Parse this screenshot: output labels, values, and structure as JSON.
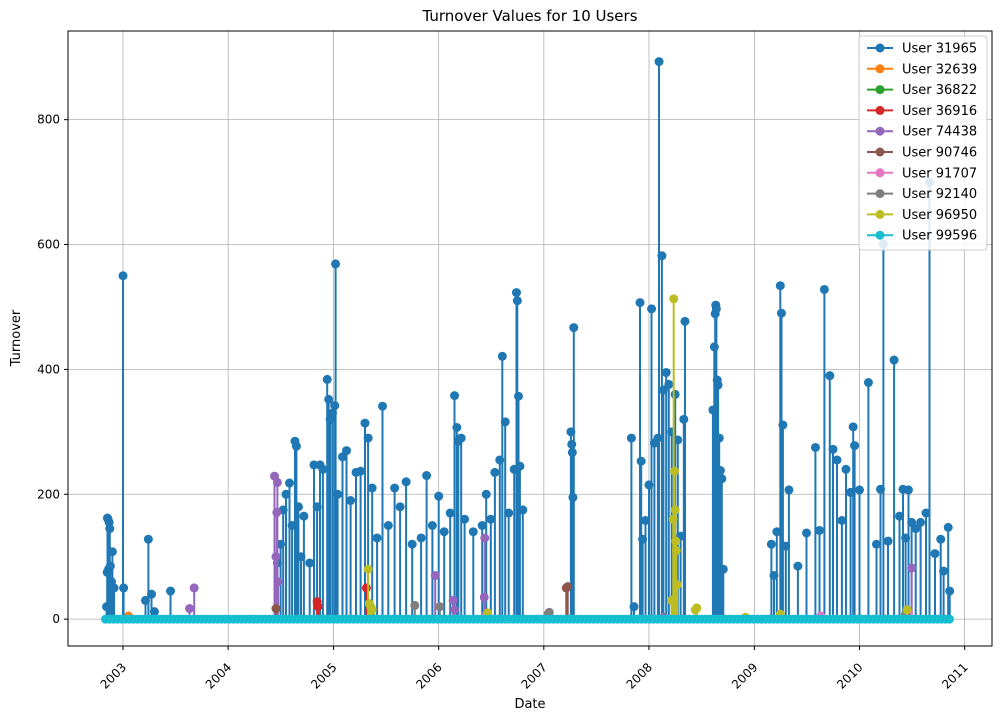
{
  "chart_data": {
    "type": "line",
    "title": "Turnover Values for 10 Users",
    "xlabel": "Date",
    "ylabel": "Turnover",
    "xlim": [
      "2002-06-24",
      "2011-04-06"
    ],
    "ylim": [
      -43,
      942
    ],
    "x_ticks": [
      "2003",
      "2004",
      "2005",
      "2006",
      "2007",
      "2008",
      "2009",
      "2010",
      "2011"
    ],
    "y_ticks": [
      0,
      200,
      400,
      600,
      800
    ],
    "grid": true,
    "legend_position": "top-right",
    "series": [
      {
        "name": "User 31965",
        "color": "#1f77b4",
        "points": [
          [
            "2002-11-05",
            20
          ],
          [
            "2002-11-07",
            75
          ],
          [
            "2002-11-08",
            162
          ],
          [
            "2002-11-10",
            160
          ],
          [
            "2002-11-12",
            80
          ],
          [
            "2002-11-14",
            155
          ],
          [
            "2002-11-16",
            145
          ],
          [
            "2002-11-18",
            85
          ],
          [
            "2002-11-22",
            60
          ],
          [
            "2002-11-25",
            108
          ],
          [
            "2002-12-01",
            50
          ],
          [
            "2003-01-01",
            550
          ],
          [
            "2003-01-03",
            50
          ],
          [
            "2003-03-20",
            30
          ],
          [
            "2003-03-30",
            128
          ],
          [
            "2003-04-10",
            40
          ],
          [
            "2003-04-20",
            12
          ],
          [
            "2003-06-15",
            45
          ],
          [
            "2004-06-20",
            90
          ],
          [
            "2004-07-01",
            120
          ],
          [
            "2004-07-10",
            175
          ],
          [
            "2004-07-20",
            200
          ],
          [
            "2004-08-01",
            218
          ],
          [
            "2004-08-10",
            150
          ],
          [
            "2004-08-20",
            285
          ],
          [
            "2004-08-25",
            277
          ],
          [
            "2004-09-01",
            180
          ],
          [
            "2004-09-10",
            100
          ],
          [
            "2004-09-20",
            165
          ],
          [
            "2004-10-10",
            90
          ],
          [
            "2004-10-25",
            247
          ],
          [
            "2004-11-05",
            180
          ],
          [
            "2004-11-15",
            247
          ],
          [
            "2004-11-25",
            240
          ],
          [
            "2004-12-10",
            384
          ],
          [
            "2004-12-15",
            352
          ],
          [
            "2004-12-20",
            320
          ],
          [
            "2004-12-28",
            330
          ],
          [
            "2005-01-05",
            342
          ],
          [
            "2005-01-08",
            569
          ],
          [
            "2005-01-15",
            200
          ],
          [
            "2005-02-01",
            260
          ],
          [
            "2005-02-15",
            270
          ],
          [
            "2005-03-01",
            190
          ],
          [
            "2005-03-20",
            235
          ],
          [
            "2005-04-05",
            237
          ],
          [
            "2005-04-20",
            314
          ],
          [
            "2005-05-01",
            290
          ],
          [
            "2005-05-15",
            210
          ],
          [
            "2005-06-01",
            130
          ],
          [
            "2005-06-20",
            341
          ],
          [
            "2005-07-10",
            150
          ],
          [
            "2005-08-01",
            210
          ],
          [
            "2005-08-20",
            180
          ],
          [
            "2005-09-10",
            220
          ],
          [
            "2005-10-01",
            120
          ],
          [
            "2005-11-01",
            130
          ],
          [
            "2005-11-20",
            230
          ],
          [
            "2005-12-10",
            150
          ],
          [
            "2006-01-01",
            197
          ],
          [
            "2006-01-20",
            140
          ],
          [
            "2006-02-10",
            170
          ],
          [
            "2006-02-25",
            358
          ],
          [
            "2006-03-05",
            307
          ],
          [
            "2006-03-10",
            285
          ],
          [
            "2006-03-20",
            290
          ],
          [
            "2006-04-01",
            160
          ],
          [
            "2006-05-01",
            140
          ],
          [
            "2006-06-01",
            150
          ],
          [
            "2006-06-15",
            200
          ],
          [
            "2006-07-01",
            160
          ],
          [
            "2006-07-15",
            235
          ],
          [
            "2006-08-01",
            255
          ],
          [
            "2006-08-10",
            421
          ],
          [
            "2006-08-20",
            316
          ],
          [
            "2006-09-01",
            170
          ],
          [
            "2006-09-20",
            240
          ],
          [
            "2006-09-28",
            523
          ],
          [
            "2006-10-01",
            510
          ],
          [
            "2006-10-05",
            357
          ],
          [
            "2006-10-10",
            245
          ],
          [
            "2006-10-20",
            175
          ],
          [
            "2007-04-05",
            300
          ],
          [
            "2007-04-08",
            280
          ],
          [
            "2007-04-10",
            267
          ],
          [
            "2007-04-12",
            195
          ],
          [
            "2007-04-15",
            467
          ],
          [
            "2007-11-01",
            290
          ],
          [
            "2007-11-10",
            20
          ],
          [
            "2007-12-01",
            507
          ],
          [
            "2007-12-05",
            253
          ],
          [
            "2007-12-10",
            128
          ],
          [
            "2007-12-20",
            158
          ],
          [
            "2008-01-01",
            215
          ],
          [
            "2008-01-10",
            497
          ],
          [
            "2008-01-20",
            282
          ],
          [
            "2008-02-01",
            290
          ],
          [
            "2008-02-05",
            893
          ],
          [
            "2008-02-15",
            582
          ],
          [
            "2008-02-20",
            367
          ],
          [
            "2008-03-01",
            395
          ],
          [
            "2008-03-10",
            376
          ],
          [
            "2008-03-20",
            300
          ],
          [
            "2008-04-01",
            360
          ],
          [
            "2008-04-10",
            287
          ],
          [
            "2008-04-20",
            133
          ],
          [
            "2008-05-01",
            320
          ],
          [
            "2008-05-05",
            477
          ],
          [
            "2008-08-10",
            335
          ],
          [
            "2008-08-15",
            436
          ],
          [
            "2008-08-18",
            489
          ],
          [
            "2008-08-20",
            503
          ],
          [
            "2008-08-22",
            497
          ],
          [
            "2008-08-25",
            383
          ],
          [
            "2008-08-28",
            375
          ],
          [
            "2008-09-01",
            290
          ],
          [
            "2008-09-05",
            238
          ],
          [
            "2008-09-10",
            225
          ],
          [
            "2008-09-15",
            80
          ],
          [
            "2009-03-01",
            120
          ],
          [
            "2009-03-10",
            70
          ],
          [
            "2009-03-20",
            140
          ],
          [
            "2009-04-01",
            534
          ],
          [
            "2009-04-05",
            490
          ],
          [
            "2009-04-10",
            311
          ],
          [
            "2009-04-20",
            117
          ],
          [
            "2009-05-01",
            207
          ],
          [
            "2009-06-01",
            85
          ],
          [
            "2009-07-01",
            138
          ],
          [
            "2009-08-01",
            275
          ],
          [
            "2009-08-15",
            142
          ],
          [
            "2009-09-01",
            528
          ],
          [
            "2009-09-20",
            390
          ],
          [
            "2009-10-01",
            272
          ],
          [
            "2009-10-15",
            255
          ],
          [
            "2009-11-01",
            158
          ],
          [
            "2009-11-15",
            240
          ],
          [
            "2009-12-01",
            203
          ],
          [
            "2009-12-10",
            308
          ],
          [
            "2009-12-15",
            278
          ],
          [
            "2010-01-01",
            207
          ],
          [
            "2010-02-01",
            379
          ],
          [
            "2010-03-01",
            120
          ],
          [
            "2010-03-15",
            208
          ],
          [
            "2010-03-25",
            601
          ],
          [
            "2010-04-10",
            125
          ],
          [
            "2010-05-01",
            415
          ],
          [
            "2010-05-20",
            165
          ],
          [
            "2010-06-01",
            208
          ],
          [
            "2010-06-10",
            130
          ],
          [
            "2010-06-20",
            207
          ],
          [
            "2010-07-01",
            155
          ],
          [
            "2010-07-15",
            145
          ],
          [
            "2010-08-01",
            155
          ],
          [
            "2010-08-20",
            170
          ],
          [
            "2010-09-01",
            700
          ],
          [
            "2010-09-20",
            105
          ],
          [
            "2010-10-10",
            128
          ],
          [
            "2010-10-20",
            77
          ],
          [
            "2010-11-05",
            147
          ],
          [
            "2010-11-10",
            45
          ]
        ]
      },
      {
        "name": "User 32639",
        "color": "#ff7f0e",
        "points": [
          [
            "2003-01-20",
            5
          ],
          [
            "2003-01-25",
            2
          ]
        ]
      },
      {
        "name": "User 36822",
        "color": "#2ca02c",
        "points": [
          [
            "2005-05-10",
            6
          ]
        ]
      },
      {
        "name": "User 36916",
        "color": "#d62728",
        "points": [
          [
            "2004-11-05",
            28
          ],
          [
            "2004-11-08",
            20
          ],
          [
            "2005-04-25",
            50
          ]
        ]
      },
      {
        "name": "User 74438",
        "color": "#9467bd",
        "points": [
          [
            "2003-09-05",
            50
          ],
          [
            "2003-08-20",
            17
          ],
          [
            "2004-06-10",
            229
          ],
          [
            "2004-06-15",
            100
          ],
          [
            "2004-06-18",
            171
          ],
          [
            "2004-06-20",
            219
          ],
          [
            "2004-06-22",
            60
          ],
          [
            "2005-12-20",
            70
          ],
          [
            "2006-02-20",
            30
          ],
          [
            "2006-02-25",
            15
          ],
          [
            "2006-06-10",
            130
          ],
          [
            "2006-06-08",
            35
          ],
          [
            "2008-02-20",
            3
          ],
          [
            "2010-07-01",
            82
          ]
        ]
      },
      {
        "name": "User 90746",
        "color": "#8c564b",
        "points": [
          [
            "2004-06-15",
            17
          ],
          [
            "2007-03-20",
            50
          ],
          [
            "2007-03-25",
            52
          ]
        ]
      },
      {
        "name": "User 91707",
        "color": "#e377c2",
        "points": [
          [
            "2006-06-12",
            5
          ],
          [
            "2009-08-20",
            5
          ],
          [
            "2010-06-20",
            10
          ]
        ]
      },
      {
        "name": "User 92140",
        "color": "#7f7f7f",
        "points": [
          [
            "2005-10-10",
            22
          ],
          [
            "2006-01-05",
            20
          ],
          [
            "2007-01-15",
            8
          ],
          [
            "2007-01-20",
            11
          ],
          [
            "2010-06-10",
            8
          ]
        ]
      },
      {
        "name": "User 96950",
        "color": "#bcbd22",
        "points": [
          [
            "2005-05-01",
            80
          ],
          [
            "2005-05-05",
            25
          ],
          [
            "2005-05-10",
            20
          ],
          [
            "2005-05-15",
            15
          ],
          [
            "2006-06-20",
            10
          ],
          [
            "2008-03-20",
            30
          ],
          [
            "2008-03-25",
            160
          ],
          [
            "2008-03-27",
            513
          ],
          [
            "2008-03-30",
            237
          ],
          [
            "2008-04-01",
            175
          ],
          [
            "2008-04-03",
            125
          ],
          [
            "2008-04-05",
            110
          ],
          [
            "2008-04-08",
            55
          ],
          [
            "2008-06-10",
            15
          ],
          [
            "2008-06-15",
            18
          ],
          [
            "2008-12-01",
            3
          ],
          [
            "2009-04-01",
            8
          ],
          [
            "2010-06-15",
            15
          ]
        ]
      },
      {
        "name": "User 99596",
        "color": "#17becf",
        "points": [
          [
            "2002-11-01",
            0
          ],
          [
            "2010-11-12",
            0
          ]
        ]
      }
    ]
  }
}
